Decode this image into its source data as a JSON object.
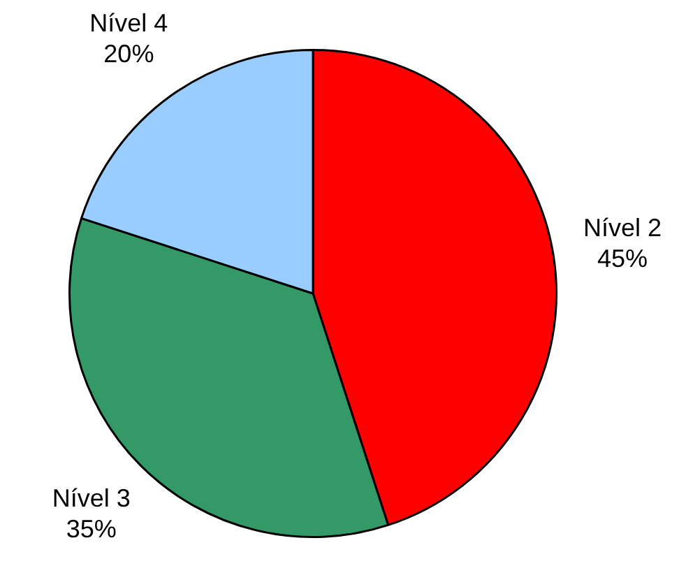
{
  "chart_data": {
    "type": "pie",
    "categories": [
      "Nível 2",
      "Nível 3",
      "Nível 4"
    ],
    "values": [
      45,
      35,
      20
    ],
    "value_labels": [
      "45%",
      "35%",
      "20%"
    ],
    "colors": [
      "#ff0000",
      "#339966",
      "#99ccff"
    ],
    "legend": false
  }
}
